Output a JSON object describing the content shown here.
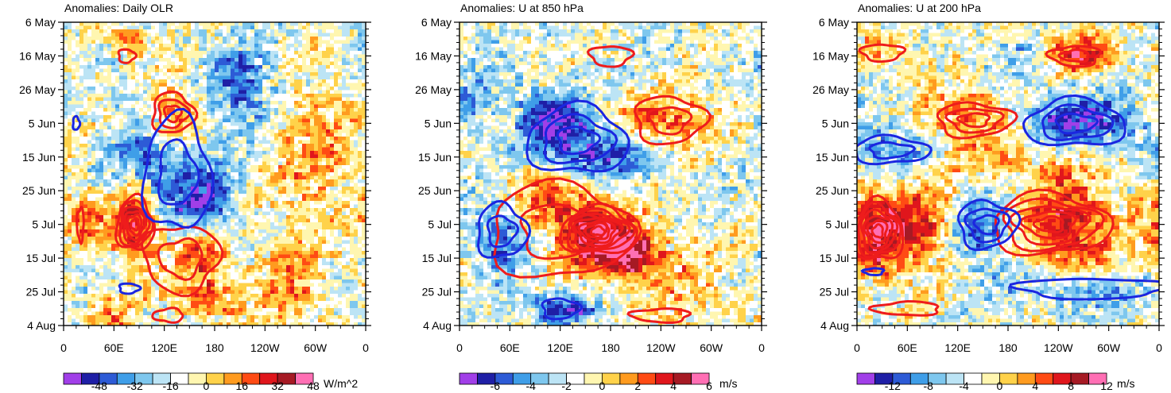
{
  "chart_data": [
    {
      "type": "heatmap",
      "title": "Anomalies: Daily OLR",
      "xlabel": "",
      "ylabel": "",
      "x_ticks": [
        "0",
        "60E",
        "120E",
        "180",
        "120W",
        "60W",
        "0"
      ],
      "y_ticks": [
        "6 May",
        "16 May",
        "26 May",
        "5 Jun",
        "15 Jun",
        "25 Jun",
        "5 Jul",
        "15 Jul",
        "25 Jul",
        "4 Aug"
      ],
      "units": "W/m^2",
      "colorbar_labels": [
        "-48",
        "-32",
        "-16",
        "0",
        "16",
        "32",
        "48"
      ],
      "anomaly_amplitude": 48,
      "blobs": [
        {
          "lon": 25,
          "day": 58,
          "sx": 18,
          "sy": 5,
          "amp": 30
        },
        {
          "lon": 85,
          "day": 60,
          "sx": 20,
          "sy": 9,
          "amp": 48
        },
        {
          "lon": 165,
          "day": 69,
          "sx": 25,
          "sy": 6,
          "amp": 35
        },
        {
          "lon": 175,
          "day": 82,
          "sx": 25,
          "sy": 4,
          "amp": 28
        },
        {
          "lon": 130,
          "day": 28,
          "sx": 25,
          "sy": 7,
          "amp": 40
        },
        {
          "lon": 80,
          "day": 6,
          "sx": 15,
          "sy": 3,
          "amp": 28
        },
        {
          "lon": 105,
          "day": 40,
          "sx": 35,
          "sy": 12,
          "amp": -30
        },
        {
          "lon": 165,
          "day": 52,
          "sx": 30,
          "sy": 9,
          "amp": -30
        },
        {
          "lon": 210,
          "day": 20,
          "sx": 30,
          "sy": 10,
          "amp": -28
        },
        {
          "lon": 300,
          "day": 40,
          "sx": 40,
          "sy": 15,
          "amp": 20
        },
        {
          "lon": 270,
          "day": 80,
          "sx": 30,
          "sy": 10,
          "amp": 22
        },
        {
          "lon": 60,
          "day": 90,
          "sx": 20,
          "sy": 6,
          "amp": 25
        }
      ],
      "contours_red": [
        {
          "lon": 85,
          "day": 60,
          "rx": 22,
          "ry": 8,
          "n": 6
        },
        {
          "lon": 130,
          "day": 27,
          "rx": 25,
          "ry": 6,
          "n": 3
        },
        {
          "lon": 75,
          "day": 10,
          "rx": 10,
          "ry": 2,
          "n": 1
        },
        {
          "lon": 140,
          "day": 70,
          "rx": 45,
          "ry": 10,
          "n": 2
        },
        {
          "lon": 20,
          "day": 60,
          "rx": 4,
          "ry": 5,
          "n": 1
        },
        {
          "lon": 125,
          "day": 87,
          "rx": 18,
          "ry": 2,
          "n": 1
        }
      ],
      "contours_blue": [
        {
          "lon": 135,
          "day": 45,
          "rx": 40,
          "ry": 17,
          "n": 2
        },
        {
          "lon": 15,
          "day": 30,
          "rx": 4,
          "ry": 2,
          "n": 1
        },
        {
          "lon": 78,
          "day": 79,
          "rx": 12,
          "ry": 1.5,
          "n": 1
        }
      ]
    },
    {
      "type": "heatmap",
      "title": "Anomalies: U at 850 hPa",
      "xlabel": "",
      "ylabel": "",
      "x_ticks": [
        "0",
        "60E",
        "120E",
        "180",
        "120W",
        "60W",
        "0"
      ],
      "y_ticks": [
        "6 May",
        "16 May",
        "26 May",
        "5 Jun",
        "15 Jun",
        "25 Jun",
        "5 Jul",
        "15 Jul",
        "25 Jul",
        "4 Aug"
      ],
      "units": "m/s",
      "colorbar_labels": [
        "-6",
        "-4",
        "-2",
        "0",
        "2",
        "4",
        "6"
      ],
      "anomaly_amplitude": 6,
      "blobs": [
        {
          "lon": 160,
          "day": 62,
          "sx": 35,
          "sy": 8,
          "amp": 6
        },
        {
          "lon": 205,
          "day": 69,
          "sx": 25,
          "sy": 5,
          "amp": 6
        },
        {
          "lon": 245,
          "day": 29,
          "sx": 40,
          "sy": 5,
          "amp": 4
        },
        {
          "lon": 100,
          "day": 52,
          "sx": 30,
          "sy": 7,
          "amp": 3
        },
        {
          "lon": 110,
          "day": 30,
          "sx": 35,
          "sy": 7,
          "amp": -5
        },
        {
          "lon": 170,
          "day": 40,
          "sx": 40,
          "sy": 6,
          "amp": -4
        },
        {
          "lon": 50,
          "day": 64,
          "sx": 25,
          "sy": 7,
          "amp": -4
        },
        {
          "lon": 120,
          "day": 85,
          "sx": 30,
          "sy": 4,
          "amp": -4
        },
        {
          "lon": 20,
          "day": 20,
          "sx": 20,
          "sy": 10,
          "amp": -2
        },
        {
          "lon": 280,
          "day": 80,
          "sx": 40,
          "sy": 10,
          "amp": 2
        }
      ],
      "contours_red": [
        {
          "lon": 165,
          "day": 62,
          "rx": 45,
          "ry": 7,
          "n": 7
        },
        {
          "lon": 120,
          "day": 62,
          "rx": 85,
          "ry": 14,
          "n": 2
        },
        {
          "lon": 250,
          "day": 29,
          "rx": 42,
          "ry": 7,
          "n": 2
        },
        {
          "lon": 180,
          "day": 10,
          "rx": 25,
          "ry": 3,
          "n": 1
        },
        {
          "lon": 240,
          "day": 87,
          "rx": 35,
          "ry": 2,
          "n": 1
        }
      ],
      "contours_blue": [
        {
          "lon": 140,
          "day": 35,
          "rx": 60,
          "ry": 10,
          "n": 3
        },
        {
          "lon": 50,
          "day": 62,
          "rx": 30,
          "ry": 8,
          "n": 2
        },
        {
          "lon": 120,
          "day": 85,
          "rx": 22,
          "ry": 3,
          "n": 1
        }
      ]
    },
    {
      "type": "heatmap",
      "title": "Anomalies: U at 200 hPa",
      "xlabel": "",
      "ylabel": "",
      "x_ticks": [
        "0",
        "60E",
        "120E",
        "180",
        "120W",
        "60W",
        "0"
      ],
      "y_ticks": [
        "6 May",
        "16 May",
        "26 May",
        "5 Jun",
        "15 Jun",
        "25 Jun",
        "5 Jul",
        "15 Jul",
        "25 Jul",
        "4 Aug"
      ],
      "units": "m/s",
      "colorbar_labels": [
        "-12",
        "-8",
        "-4",
        "0",
        "4",
        "8",
        "12"
      ],
      "anomaly_amplitude": 14,
      "blobs": [
        {
          "lon": 30,
          "day": 62,
          "sx": 30,
          "sy": 10,
          "amp": 14
        },
        {
          "lon": 90,
          "day": 60,
          "sx": 25,
          "sy": 8,
          "amp": 8
        },
        {
          "lon": 250,
          "day": 60,
          "sx": 40,
          "sy": 10,
          "amp": 12
        },
        {
          "lon": 130,
          "day": 28,
          "sx": 40,
          "sy": 6,
          "amp": 8
        },
        {
          "lon": 260,
          "day": 9,
          "sx": 30,
          "sy": 4,
          "amp": 12
        },
        {
          "lon": 30,
          "day": 9,
          "sx": 25,
          "sy": 3,
          "amp": 7
        },
        {
          "lon": 180,
          "day": 40,
          "sx": 80,
          "sy": 5,
          "amp": 5
        },
        {
          "lon": 260,
          "day": 30,
          "sx": 45,
          "sy": 6,
          "amp": -12
        },
        {
          "lon": 40,
          "day": 38,
          "sx": 40,
          "sy": 6,
          "amp": -8
        },
        {
          "lon": 150,
          "day": 62,
          "sx": 30,
          "sy": 8,
          "amp": -9
        },
        {
          "lon": 260,
          "day": 80,
          "sx": 60,
          "sy": 4,
          "amp": -6
        },
        {
          "lon": 200,
          "day": 10,
          "sx": 30,
          "sy": 4,
          "amp": -5
        }
      ],
      "contours_red": [
        {
          "lon": 25,
          "day": 62,
          "rx": 30,
          "ry": 9,
          "n": 6
        },
        {
          "lon": 230,
          "day": 60,
          "rx": 70,
          "ry": 9,
          "n": 5
        },
        {
          "lon": 140,
          "day": 29,
          "rx": 45,
          "ry": 5,
          "n": 3
        },
        {
          "lon": 30,
          "day": 9,
          "rx": 25,
          "ry": 2.5,
          "n": 1
        },
        {
          "lon": 260,
          "day": 10,
          "rx": 30,
          "ry": 3,
          "n": 2
        },
        {
          "lon": 60,
          "day": 85,
          "rx": 40,
          "ry": 2,
          "n": 1
        }
      ],
      "contours_blue": [
        {
          "lon": 260,
          "day": 30,
          "rx": 60,
          "ry": 7,
          "n": 3
        },
        {
          "lon": 40,
          "day": 38,
          "rx": 45,
          "ry": 4,
          "n": 2
        },
        {
          "lon": 155,
          "day": 60,
          "rx": 35,
          "ry": 7,
          "n": 3
        },
        {
          "lon": 280,
          "day": 79,
          "rx": 90,
          "ry": 3,
          "n": 1
        },
        {
          "lon": 20,
          "day": 74,
          "rx": 12,
          "ry": 1,
          "n": 1
        }
      ]
    }
  ]
}
